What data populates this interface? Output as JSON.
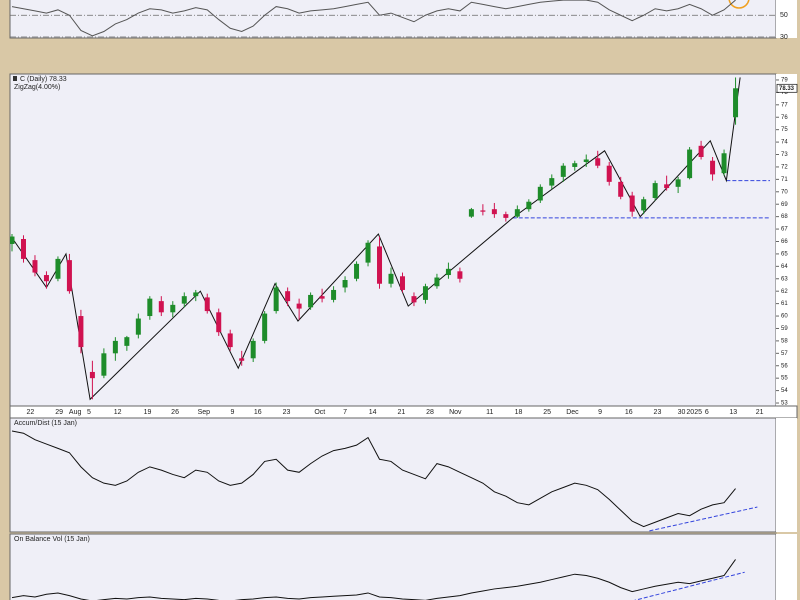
{
  "chart_data": [
    {
      "type": "line",
      "color": "#555555",
      "values": [
        58,
        56,
        54,
        52,
        55,
        50,
        36,
        31,
        35,
        42,
        46,
        52,
        56,
        55,
        52,
        54,
        57,
        55,
        46,
        38,
        35,
        40,
        50,
        58,
        56,
        52,
        54,
        55,
        56,
        58,
        60,
        62,
        50,
        52,
        48,
        44,
        50,
        54,
        56,
        54,
        62,
        60,
        58,
        56,
        58,
        60,
        62,
        63,
        64,
        64,
        64,
        62,
        55,
        50,
        45,
        50,
        56,
        54,
        56,
        60,
        56,
        50,
        55,
        64
      ],
      "ylim": [
        29,
        65
      ],
      "yticks": [
        30,
        50
      ]
    },
    {
      "type": "candlestick",
      "title": "C (Daily) 78.33",
      "subtitle": "ZigZag(4.00%)",
      "up_color": "#1e8c2a",
      "down_color": "#d01250",
      "open": [
        65.8,
        66.2,
        64.5,
        63.3,
        63.0,
        64.5,
        60.0,
        55.5,
        55.2,
        57.0,
        57.6,
        58.5,
        60.0,
        61.2,
        60.3,
        61.0,
        61.6,
        61.5,
        60.3,
        58.6,
        56.6,
        56.6,
        58.0,
        60.4,
        62.0,
        61.0,
        60.7,
        61.6,
        61.3,
        62.3,
        63.0,
        64.3,
        65.6,
        62.6,
        63.2,
        61.6,
        61.3,
        62.4,
        63.3,
        63.6,
        68.0,
        68.5,
        68.6,
        68.2,
        68.0,
        68.6,
        69.3,
        70.5,
        71.2,
        72.0,
        72.4,
        72.7,
        72.1,
        70.8,
        69.7,
        68.5,
        69.5,
        70.6,
        70.4,
        71.1,
        73.7,
        72.5,
        71.5,
        76.0
      ],
      "high": [
        66.6,
        66.5,
        64.9,
        63.6,
        64.8,
        65.0,
        60.5,
        56.4,
        57.4,
        58.3,
        58.4,
        60.2,
        61.6,
        61.6,
        61.2,
        61.9,
        62.1,
        61.8,
        60.6,
        58.9,
        57.2,
        58.2,
        60.4,
        62.7,
        62.3,
        61.4,
        61.9,
        62.2,
        62.4,
        63.2,
        64.4,
        66.1,
        66.4,
        63.9,
        63.5,
        61.9,
        62.6,
        63.4,
        64.3,
        63.9,
        68.7,
        69.0,
        69.1,
        68.4,
        68.9,
        69.4,
        70.6,
        71.4,
        72.3,
        72.5,
        73.0,
        73.3,
        72.4,
        71.2,
        70.0,
        69.6,
        70.9,
        71.3,
        71.2,
        73.6,
        74.1,
        72.8,
        73.4,
        79.2
      ],
      "low": [
        65.2,
        64.3,
        63.2,
        62.2,
        62.8,
        61.8,
        57.0,
        53.3,
        55.0,
        56.4,
        57.2,
        58.2,
        59.7,
        60.0,
        59.9,
        60.7,
        61.2,
        60.2,
        58.4,
        57.2,
        56.0,
        56.3,
        57.8,
        60.2,
        60.8,
        59.7,
        60.5,
        61.1,
        61.1,
        61.9,
        62.8,
        64.0,
        62.2,
        62.3,
        61.9,
        60.8,
        61.0,
        62.2,
        63.0,
        62.7,
        67.9,
        68.1,
        67.9,
        67.6,
        67.9,
        68.4,
        69.1,
        70.2,
        70.8,
        71.7,
        72.0,
        71.9,
        70.5,
        69.4,
        68.0,
        68.2,
        69.3,
        70.1,
        69.9,
        71.0,
        72.6,
        70.9,
        71.3,
        75.4
      ],
      "close": [
        66.4,
        64.6,
        63.5,
        62.8,
        64.6,
        62.0,
        57.5,
        55.0,
        57.0,
        58.0,
        58.3,
        59.8,
        61.4,
        60.3,
        60.9,
        61.6,
        61.9,
        60.4,
        58.7,
        57.5,
        56.4,
        58.0,
        60.2,
        62.3,
        61.2,
        60.6,
        61.7,
        61.4,
        62.1,
        62.9,
        64.2,
        65.9,
        62.6,
        63.4,
        62.1,
        61.1,
        62.4,
        63.1,
        63.8,
        63.0,
        68.6,
        68.4,
        68.2,
        67.9,
        68.6,
        69.2,
        70.4,
        71.1,
        72.1,
        72.3,
        72.6,
        72.1,
        70.8,
        69.6,
        68.4,
        69.4,
        70.7,
        70.3,
        71.0,
        73.4,
        72.8,
        71.4,
        73.1,
        78.33
      ],
      "last_value": 78.33,
      "zigzag": {
        "x": [
          0,
          3,
          4.7,
          6.8,
          16.4,
          19.7,
          22.9,
          24.9,
          31.9,
          34.5,
          43.6,
          51.6,
          54.7,
          60.8,
          62.2,
          63.4
        ],
        "values": [
          66.3,
          62.3,
          65,
          53.3,
          62,
          55.8,
          62.6,
          59.6,
          66.6,
          60.8,
          67.9,
          73.3,
          68,
          74.1,
          70.9,
          79.2
        ]
      },
      "support_lines": [
        {
          "from": 43.6,
          "value": 67.9
        },
        {
          "from": 62.2,
          "value": 70.9
        }
      ],
      "xlim": [
        0,
        66
      ],
      "ylim": [
        52.76,
        79.48
      ],
      "yticks": [
        53,
        54,
        55,
        56,
        57,
        58,
        59,
        60,
        61,
        62,
        63,
        64,
        65,
        66,
        67,
        68,
        69,
        70,
        71,
        72,
        73,
        74,
        75,
        76,
        77,
        78,
        79
      ],
      "xticks": [
        {
          "value": 1.6,
          "label": "22"
        },
        {
          "value": 4.1,
          "label": "29"
        },
        {
          "value": 5.5,
          "label": "Aug"
        },
        {
          "value": 6.7,
          "label": "5"
        },
        {
          "value": 9.2,
          "label": "12"
        },
        {
          "value": 11.8,
          "label": "19"
        },
        {
          "value": 14.2,
          "label": "26"
        },
        {
          "value": 16.7,
          "label": "Sep"
        },
        {
          "value": 19.2,
          "label": "9"
        },
        {
          "value": 21.4,
          "label": "16"
        },
        {
          "value": 23.9,
          "label": "23"
        },
        {
          "value": 26.8,
          "label": "Oct"
        },
        {
          "value": 29,
          "label": "7"
        },
        {
          "value": 31.4,
          "label": "14"
        },
        {
          "value": 33.9,
          "label": "21"
        },
        {
          "value": 36.4,
          "label": "28"
        },
        {
          "value": 38.6,
          "label": "Nov"
        },
        {
          "value": 41.6,
          "label": "11"
        },
        {
          "value": 44.1,
          "label": "18"
        },
        {
          "value": 46.6,
          "label": "25"
        },
        {
          "value": 48.8,
          "label": "Dec"
        },
        {
          "value": 51.2,
          "label": "9"
        },
        {
          "value": 53.7,
          "label": "16"
        },
        {
          "value": 56.2,
          "label": "23"
        },
        {
          "value": 58.3,
          "label": "30"
        },
        {
          "value": 59.4,
          "label": "2025"
        },
        {
          "value": 60.5,
          "label": "6"
        },
        {
          "value": 62.8,
          "label": "13"
        },
        {
          "value": 65.1,
          "label": "21"
        }
      ]
    },
    {
      "type": "line",
      "title": "Accum/Dist (15 Jan)",
      "color": "#111111",
      "values": [
        88,
        86,
        80,
        76,
        72,
        68,
        55,
        45,
        40,
        38,
        42,
        50,
        55,
        52,
        48,
        45,
        52,
        50,
        42,
        38,
        40,
        48,
        60,
        62,
        52,
        50,
        58,
        65,
        70,
        72,
        75,
        82,
        62,
        60,
        52,
        48,
        44,
        58,
        55,
        50,
        45,
        40,
        32,
        28,
        22,
        20,
        26,
        32,
        36,
        40,
        38,
        34,
        25,
        15,
        5,
        0,
        4,
        8,
        12,
        10,
        16,
        20,
        22,
        35
      ],
      "ylim": [
        -5,
        100
      ],
      "trendline": {
        "x": [
          55.5,
          64.9
        ],
        "values": [
          -4,
          18
        ]
      }
    },
    {
      "type": "line",
      "title": "On Balance Vol (15 Jan)",
      "color": "#111111",
      "values": [
        5,
        8,
        6,
        10,
        12,
        8,
        3,
        0,
        2,
        4,
        3,
        5,
        6,
        4,
        3,
        2,
        4,
        3,
        1,
        0,
        2,
        3,
        5,
        6,
        4,
        3,
        5,
        6,
        7,
        8,
        9,
        12,
        6,
        5,
        3,
        2,
        1,
        4,
        6,
        8,
        12,
        15,
        18,
        20,
        22,
        25,
        28,
        32,
        36,
        40,
        38,
        34,
        28,
        20,
        14,
        18,
        22,
        25,
        28,
        26,
        30,
        34,
        38,
        62
      ],
      "ylim": [
        0,
        100
      ],
      "trendline": {
        "x": [
          54,
          63.8
        ],
        "values": [
          0,
          43
        ]
      }
    }
  ]
}
